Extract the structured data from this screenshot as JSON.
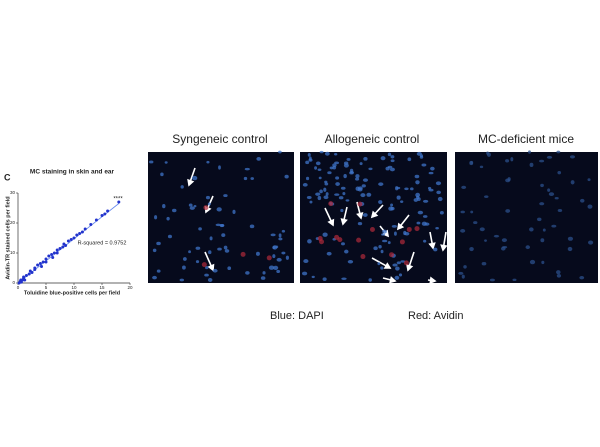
{
  "chart_data": {
    "type": "scatter",
    "panel_label": "C",
    "title": "MC staining in skin and ear",
    "x_label": "Toluidine blue-positive cells per field",
    "y_label": "Avidin-TR stained cells per field",
    "annotation": "R-squared = 0.9752",
    "significance": "****",
    "xlim": [
      0,
      20
    ],
    "xticks": [
      0,
      5,
      10,
      15,
      20
    ],
    "ylim": [
      0,
      30
    ],
    "yticks": [
      0,
      10,
      20,
      30
    ],
    "color": "#2233cc",
    "line_color": "#6688ee",
    "x": [
      0.2,
      0.4,
      0.5,
      0.6,
      0.8,
      1,
      1,
      1.2,
      1.5,
      2,
      2.2,
      2.5,
      3,
      3,
      3.5,
      4,
      4.2,
      4.5,
      5,
      5,
      5.5,
      6,
      6.2,
      6.5,
      7,
      7,
      7.5,
      8,
      8.2,
      8.5,
      9,
      9.5,
      10,
      10.5,
      11,
      11.5,
      12,
      13,
      14,
      15,
      15.5,
      16,
      18
    ],
    "y": [
      0,
      0.5,
      1,
      0.3,
      1,
      1.5,
      2,
      1,
      2.5,
      3,
      4,
      3.5,
      4.5,
      5,
      6,
      6.5,
      5.5,
      7,
      8,
      7,
      9,
      9.5,
      8.5,
      10,
      11,
      10,
      11.5,
      12,
      13,
      12.5,
      14,
      14.5,
      15,
      16,
      16.5,
      17,
      18,
      19.5,
      21,
      22.5,
      23,
      24,
      27
    ],
    "trendline": {
      "x": [
        0,
        18
      ],
      "y": [
        0,
        26.5
      ]
    }
  },
  "panels": [
    {
      "title": "Syngeneic control"
    },
    {
      "title": "Allogeneic control"
    },
    {
      "title": "MC-deficient mice"
    }
  ],
  "legend": [
    {
      "text": "Blue: DAPI",
      "color": "#3a7fd0"
    },
    {
      "text": "Red: Avidin",
      "color": "#d23030"
    }
  ]
}
